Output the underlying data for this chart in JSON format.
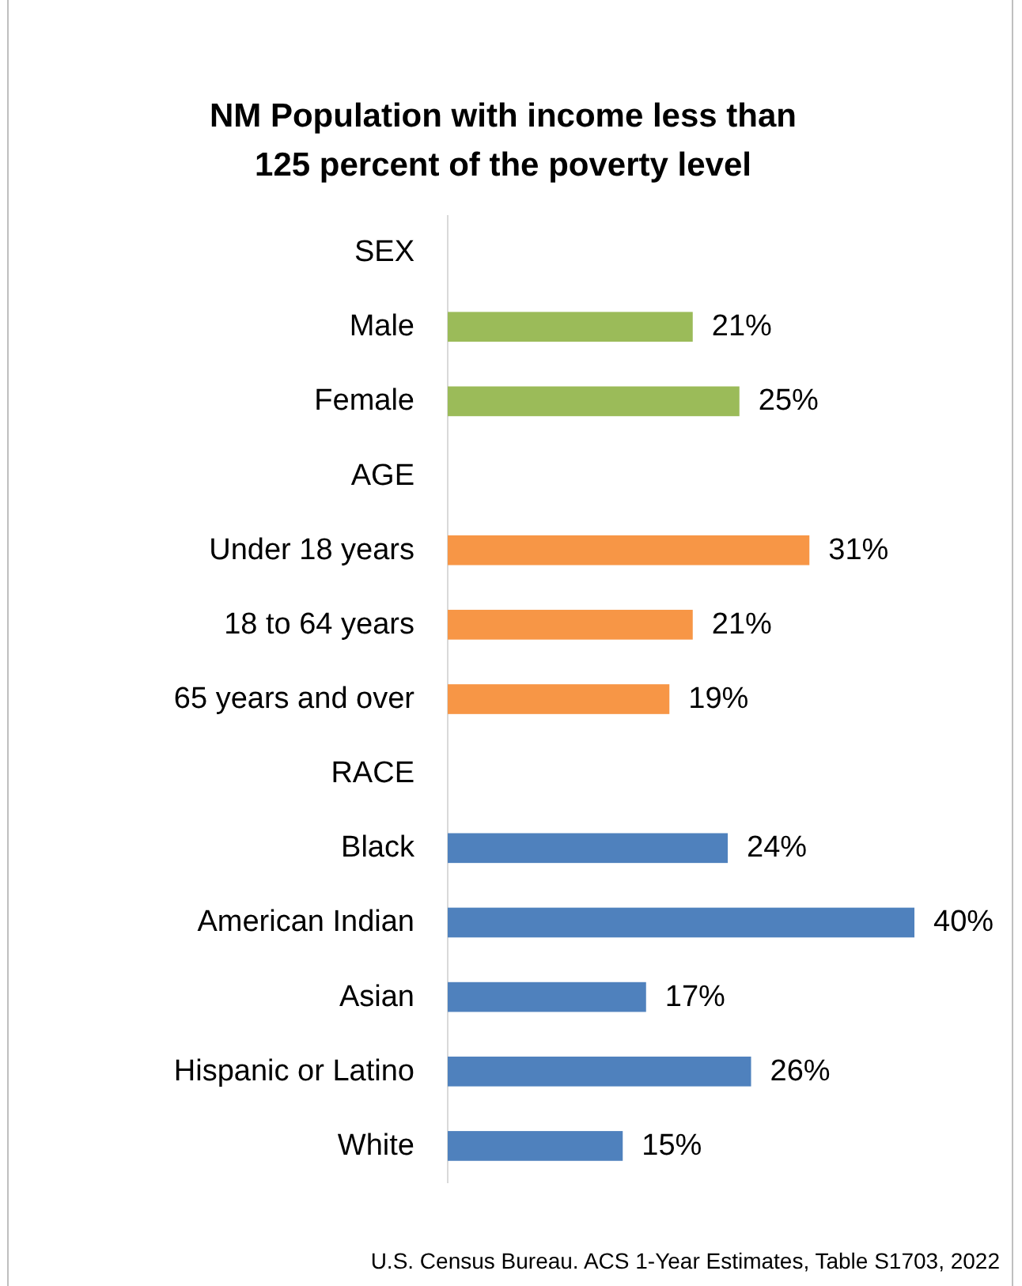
{
  "chart_data": {
    "type": "bar",
    "orientation": "horizontal",
    "title": "NM Population with income less than\n125 percent of the poverty level",
    "categories": [
      "SEX",
      "Male",
      "Female",
      "AGE",
      "Under 18 years",
      "18 to 64 years",
      "65 years and over",
      "RACE",
      "Black",
      "American Indian",
      "Asian",
      "Hispanic or Latino",
      "White"
    ],
    "values": [
      null,
      21,
      25,
      null,
      31,
      21,
      19,
      null,
      24,
      40,
      17,
      26,
      15
    ],
    "colors": [
      null,
      "#9bbb59",
      "#9bbb59",
      null,
      "#f79646",
      "#f79646",
      "#f79646",
      null,
      "#4f81bd",
      "#4f81bd",
      "#4f81bd",
      "#4f81bd",
      "#4f81bd"
    ],
    "value_labels": [
      null,
      "21%",
      "25%",
      null,
      "31%",
      "21%",
      "19%",
      null,
      "24%",
      "40%",
      "17%",
      "26%",
      "15%"
    ],
    "annotations": [
      "U.S. Census Bureau. ACS 1-Year Estimates, Table S1703, 2022"
    ]
  }
}
